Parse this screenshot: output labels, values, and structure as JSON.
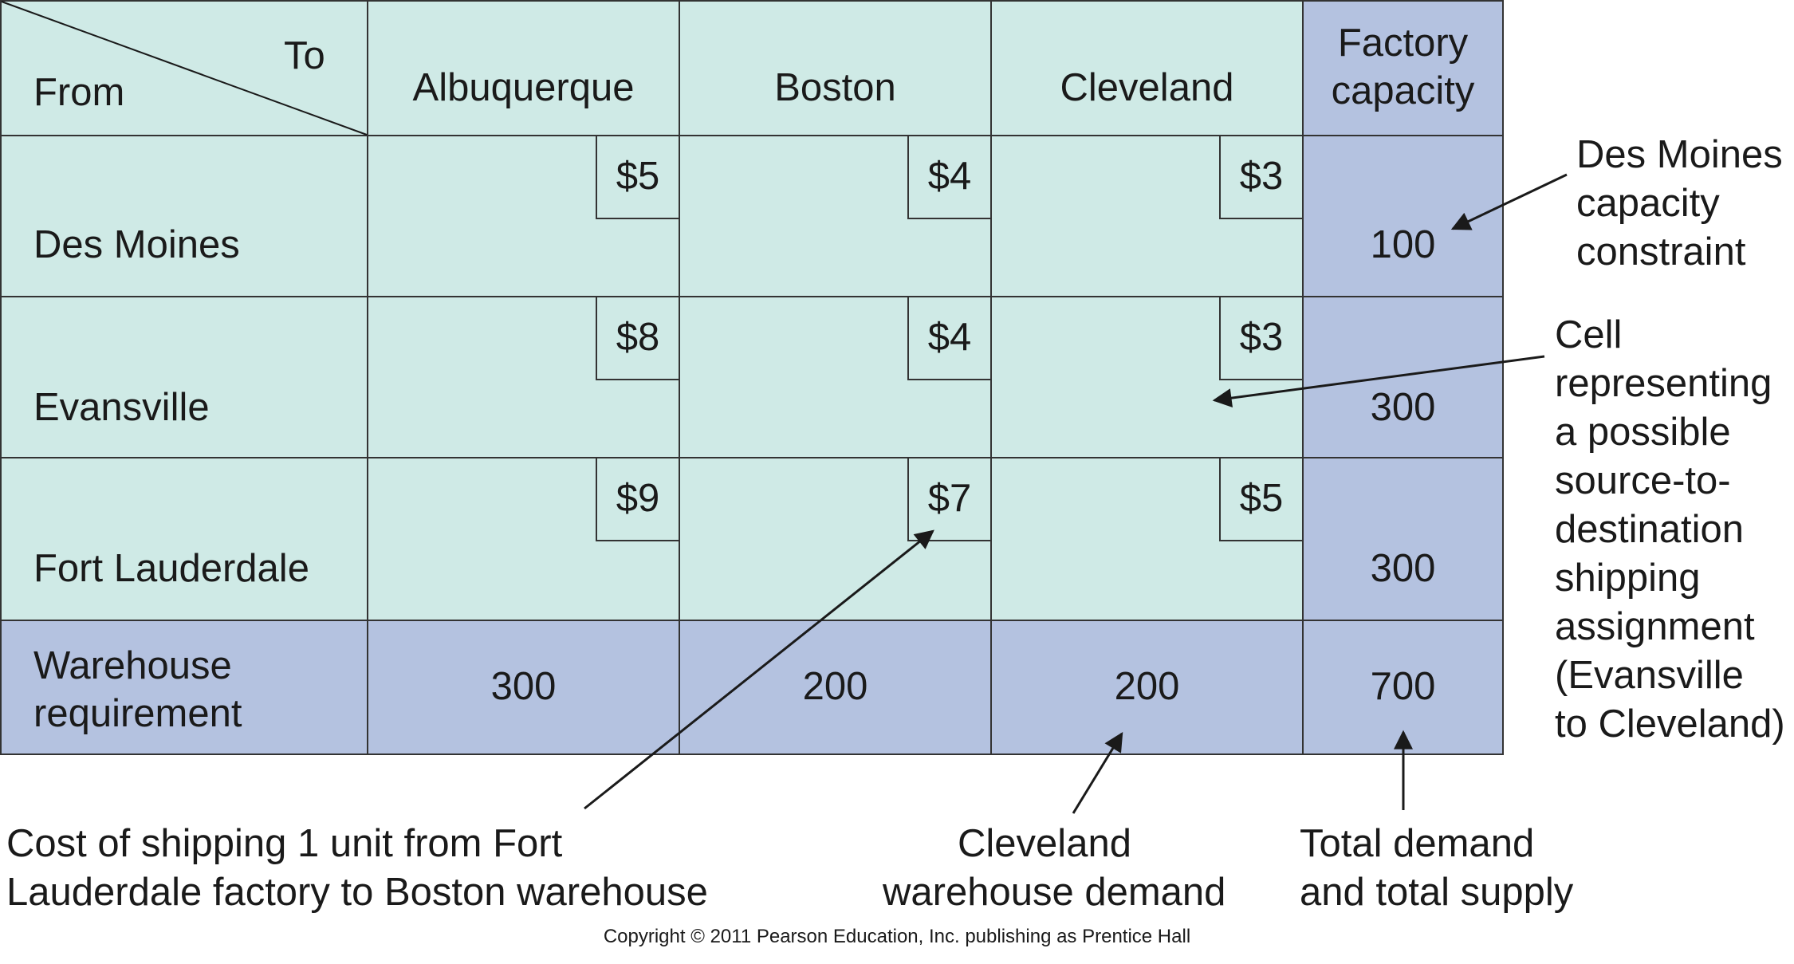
{
  "header": {
    "to_label": "To",
    "from_label": "From",
    "destinations": [
      "Albuquerque",
      "Boston",
      "Cleveland"
    ],
    "capacity_label_line1": "Factory",
    "capacity_label_line2": "capacity"
  },
  "rows": [
    {
      "source": "Des Moines",
      "costs": [
        "$5",
        "$4",
        "$3"
      ],
      "capacity": "100"
    },
    {
      "source": "Evansville",
      "costs": [
        "$8",
        "$4",
        "$3"
      ],
      "capacity": "300"
    },
    {
      "source": "Fort Lauderdale",
      "costs": [
        "$9",
        "$7",
        "$5"
      ],
      "capacity": "300"
    }
  ],
  "footer": {
    "label_line1": "Warehouse",
    "label_line2": "requirement",
    "requirements": [
      "300",
      "200",
      "200"
    ],
    "total": "700"
  },
  "annotations": {
    "des_moines_capacity": [
      "Des Moines",
      "capacity",
      "constraint"
    ],
    "cell_assignment": [
      "Cell",
      "representing",
      "a possible",
      "source-to-",
      "destination",
      "shipping",
      "assignment",
      "(Evansville",
      "to Cleveland)"
    ],
    "shipping_cost": [
      "Cost of shipping 1 unit from Fort",
      "Lauderdale factory to Boston warehouse"
    ],
    "cleveland_demand": [
      "Cleveland",
      "warehouse demand"
    ],
    "total_demand": [
      "Total demand",
      "and total supply"
    ]
  },
  "copyright": "Copyright © 2011 Pearson Education, Inc. publishing as Prentice Hall",
  "colors": {
    "cell_light": "#cfeae6",
    "cell_dark": "#b4c2e0",
    "border": "#333333"
  }
}
